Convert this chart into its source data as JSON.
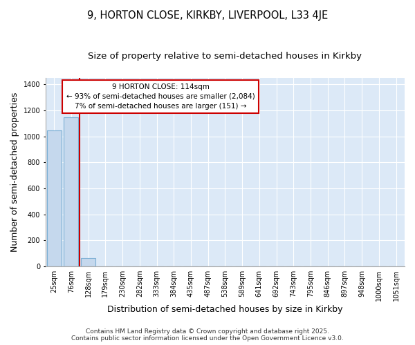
{
  "title_line1": "9, HORTON CLOSE, KIRKBY, LIVERPOOL, L33 4JE",
  "title_line2": "Size of property relative to semi-detached houses in Kirkby",
  "xlabel": "Distribution of semi-detached houses by size in Kirkby",
  "ylabel": "Number of semi-detached properties",
  "categories": [
    "25sqm",
    "76sqm",
    "128sqm",
    "179sqm",
    "230sqm",
    "282sqm",
    "333sqm",
    "384sqm",
    "435sqm",
    "487sqm",
    "538sqm",
    "589sqm",
    "641sqm",
    "692sqm",
    "743sqm",
    "795sqm",
    "846sqm",
    "897sqm",
    "948sqm",
    "1000sqm",
    "1051sqm"
  ],
  "values": [
    1047,
    1145,
    65,
    0,
    0,
    0,
    0,
    0,
    0,
    0,
    0,
    0,
    0,
    0,
    0,
    0,
    0,
    0,
    0,
    0,
    0
  ],
  "bar_color": "#c5d8ed",
  "bar_edge_color": "#7bafd4",
  "red_line_x": 1.5,
  "annotation_title": "9 HORTON CLOSE: 114sqm",
  "annotation_line2": "← 93% of semi-detached houses are smaller (2,084)",
  "annotation_line3": "7% of semi-detached houses are larger (151) →",
  "annotation_box_facecolor": "#ffffff",
  "annotation_box_edgecolor": "#cc0000",
  "red_line_color": "#cc0000",
  "ylim": [
    0,
    1450
  ],
  "fig_bg_color": "#ffffff",
  "plot_bg_color": "#dce9f7",
  "grid_color": "#ffffff",
  "footnote": "Contains HM Land Registry data © Crown copyright and database right 2025.\nContains public sector information licensed under the Open Government Licence v3.0.",
  "title_fontsize": 10.5,
  "subtitle_fontsize": 9.5,
  "axis_label_fontsize": 9,
  "tick_fontsize": 7,
  "annot_fontsize": 7.5,
  "footnote_fontsize": 6.5
}
